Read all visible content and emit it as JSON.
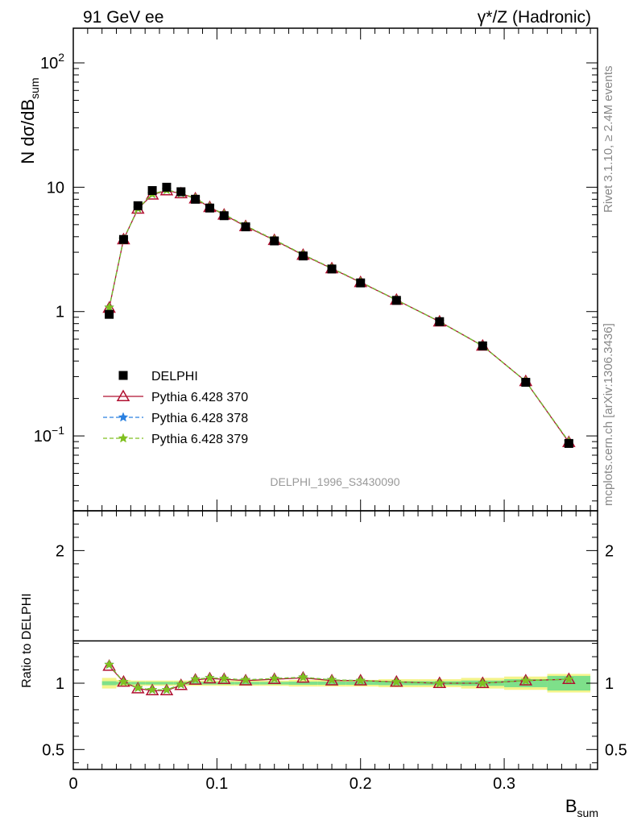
{
  "header": {
    "left_title": "91 GeV ee",
    "right_title": "γ*/Z (Hadronic)"
  },
  "side_text": {
    "rivet": "Rivet 3.1.10, ≥ 2.4M events",
    "mcplots": "mcplots.cern.ch [arXiv:1306.3436]"
  },
  "analysis_label": "DELPHI_1996_S3430090",
  "chart_data": [
    {
      "type": "line",
      "panel": "main",
      "ylabel": "N dσ/dB_sum",
      "ylabel_main": "N dσ/dB",
      "ylabel_sub": "sum",
      "xlabel": "",
      "yscale": "log",
      "ylim": [
        0.025,
        190
      ],
      "xlim": [
        0,
        0.365
      ],
      "yticks": [
        {
          "value": 100,
          "label": "10",
          "sup": "2"
        },
        {
          "value": 10,
          "label": "10",
          "sup": ""
        },
        {
          "value": 1,
          "label": "1",
          "sup": ""
        },
        {
          "value": 0.1,
          "label": "10",
          "sup": "−1"
        }
      ],
      "x": [
        0.025,
        0.035,
        0.045,
        0.055,
        0.065,
        0.075,
        0.085,
        0.095,
        0.105,
        0.12,
        0.14,
        0.16,
        0.18,
        0.2,
        0.225,
        0.255,
        0.285,
        0.315,
        0.345
      ],
      "legend": [
        "DELPHI",
        "Pythia 6.428 370",
        "Pythia 6.428 378",
        "Pythia 6.428 379"
      ],
      "series": [
        {
          "name": "DELPHI",
          "marker": "square",
          "color": "#000000",
          "values": [
            0.95,
            3.8,
            7.1,
            9.4,
            10.0,
            9.2,
            8.0,
            6.8,
            5.9,
            4.8,
            3.7,
            2.8,
            2.2,
            1.7,
            1.23,
            0.83,
            0.53,
            0.27,
            0.087
          ]
        },
        {
          "name": "Pythia 6.428 370",
          "marker": "triangle",
          "color": "#b01030",
          "values": [
            1.07,
            3.8,
            6.7,
            8.7,
            9.4,
            8.9,
            8.1,
            6.9,
            6.0,
            4.85,
            3.75,
            2.85,
            2.22,
            1.72,
            1.24,
            0.83,
            0.53,
            0.275,
            0.089
          ]
        },
        {
          "name": "Pythia 6.428 378",
          "marker": "star",
          "color": "#2a80e0",
          "values": [
            1.08,
            3.8,
            6.75,
            8.8,
            9.5,
            8.95,
            8.15,
            6.95,
            6.05,
            4.9,
            3.78,
            2.87,
            2.23,
            1.73,
            1.24,
            0.83,
            0.53,
            0.275,
            0.09
          ]
        },
        {
          "name": "Pythia 6.428 379",
          "marker": "star",
          "color": "#80c020",
          "values": [
            1.08,
            3.8,
            6.75,
            8.8,
            9.5,
            8.95,
            8.15,
            6.95,
            6.05,
            4.9,
            3.78,
            2.87,
            2.23,
            1.73,
            1.24,
            0.83,
            0.53,
            0.275,
            0.09
          ]
        }
      ]
    },
    {
      "type": "line",
      "panel": "ratio",
      "ylabel": "Ratio to DELPHI",
      "xlabel": "B_sum",
      "xlabel_main": "B",
      "xlabel_sub": "sum",
      "ylim": [
        0.35,
        2.3
      ],
      "xlim": [
        0,
        0.365
      ],
      "yticks": [
        0.5,
        1,
        2
      ],
      "ytick_labels": [
        "0.5",
        "1",
        "2"
      ],
      "xticks": [
        0,
        0.1,
        0.2,
        0.3
      ],
      "xtick_labels": [
        "0",
        "0.1",
        "0.2",
        "0.3"
      ],
      "x": [
        0.025,
        0.035,
        0.045,
        0.055,
        0.065,
        0.075,
        0.085,
        0.095,
        0.105,
        0.12,
        0.14,
        0.16,
        0.18,
        0.2,
        0.225,
        0.255,
        0.285,
        0.315,
        0.345
      ],
      "band_stat": [
        0.015,
        0.01,
        0.01,
        0.01,
        0.01,
        0.01,
        0.01,
        0.01,
        0.01,
        0.01,
        0.01,
        0.012,
        0.012,
        0.012,
        0.015,
        0.015,
        0.02,
        0.03,
        0.055
      ],
      "band_total": [
        0.04,
        0.025,
        0.02,
        0.02,
        0.02,
        0.02,
        0.02,
        0.02,
        0.02,
        0.02,
        0.02,
        0.025,
        0.025,
        0.025,
        0.03,
        0.03,
        0.04,
        0.05,
        0.07
      ],
      "series": [
        {
          "name": "Pythia 6.428 370",
          "marker": "triangle",
          "color": "#b01030",
          "values": [
            1.13,
            1.01,
            0.96,
            0.945,
            0.945,
            0.985,
            1.025,
            1.035,
            1.03,
            1.02,
            1.03,
            1.04,
            1.02,
            1.02,
            1.01,
            1.0,
            1.0,
            1.02,
            1.03
          ]
        },
        {
          "name": "Pythia 6.428 378",
          "marker": "star",
          "color": "#2a80e0",
          "values": [
            1.14,
            1.01,
            0.965,
            0.95,
            0.95,
            0.99,
            1.03,
            1.04,
            1.035,
            1.025,
            1.035,
            1.045,
            1.025,
            1.02,
            1.01,
            1.0,
            1.0,
            1.02,
            1.03
          ]
        },
        {
          "name": "Pythia 6.428 379",
          "marker": "star",
          "color": "#80c020",
          "values": [
            1.14,
            1.01,
            0.965,
            0.95,
            0.95,
            0.99,
            1.03,
            1.04,
            1.035,
            1.025,
            1.035,
            1.045,
            1.025,
            1.02,
            1.01,
            1.0,
            1.0,
            1.02,
            1.03
          ]
        }
      ]
    }
  ]
}
